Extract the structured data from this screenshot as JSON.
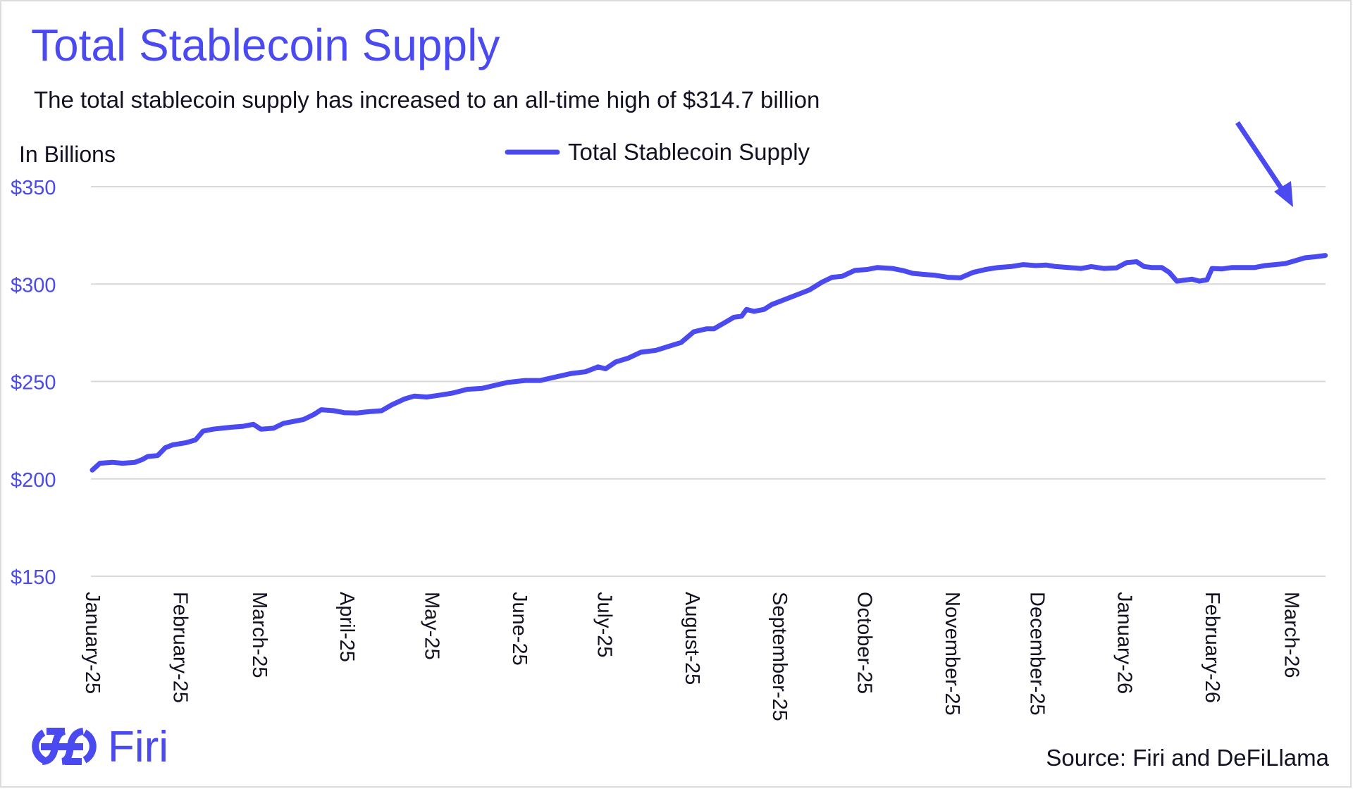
{
  "title": "Total Stablecoin Supply",
  "subtitle": "The total stablecoin supply has increased to an all-time high of $314.7 billion",
  "source": "Source: Firi and DeFiLlama",
  "logo_text": "Firi",
  "colors": {
    "accent": "#4a4af0",
    "text": "#111122",
    "grid": "#d9d9d9"
  },
  "chart_data": {
    "type": "line",
    "title": "Total Stablecoin Supply",
    "ylabel": "In Billions",
    "xlabel": "",
    "ylim": [
      150,
      350
    ],
    "yticks": [
      350,
      300,
      250,
      200,
      150
    ],
    "ytick_labels": [
      "$350",
      "$300",
      "$250",
      "$200",
      "$150"
    ],
    "grid": true,
    "legend": {
      "position": "top-center",
      "entries": [
        "Total Stablecoin Supply"
      ]
    },
    "xticks": [
      {
        "day": 0,
        "label": "January-25"
      },
      {
        "day": 31,
        "label": "February-25"
      },
      {
        "day": 59,
        "label": "March-25"
      },
      {
        "day": 90,
        "label": "April-25"
      },
      {
        "day": 120,
        "label": "May-25"
      },
      {
        "day": 151,
        "label": "June-25"
      },
      {
        "day": 181,
        "label": "July-25"
      },
      {
        "day": 212,
        "label": "August-25"
      },
      {
        "day": 243,
        "label": "September-25"
      },
      {
        "day": 273,
        "label": "October-25"
      },
      {
        "day": 304,
        "label": "November-25"
      },
      {
        "day": 334,
        "label": "December-25"
      },
      {
        "day": 365,
        "label": "January-26"
      },
      {
        "day": 396,
        "label": "February-26"
      },
      {
        "day": 424,
        "label": "March-26"
      }
    ],
    "xlim_days": [
      0,
      436
    ],
    "annotation": "arrow pointing to all-time high",
    "series": [
      {
        "name": "Total Stablecoin Supply",
        "points": [
          [
            0,
            204.5
          ],
          [
            3,
            208
          ],
          [
            8,
            208.5
          ],
          [
            12,
            208
          ],
          [
            17,
            208.5
          ],
          [
            20,
            210
          ],
          [
            22,
            211.5
          ],
          [
            26,
            212
          ],
          [
            29,
            216
          ],
          [
            32,
            217.5
          ],
          [
            37,
            218.5
          ],
          [
            41,
            220
          ],
          [
            44,
            224.5
          ],
          [
            48,
            225.5
          ],
          [
            55,
            226.5
          ],
          [
            60,
            227
          ],
          [
            64,
            228
          ],
          [
            67,
            225.5
          ],
          [
            72,
            226
          ],
          [
            76,
            228.5
          ],
          [
            80,
            229.5
          ],
          [
            84,
            230.5
          ],
          [
            88,
            233
          ],
          [
            91,
            235.5
          ],
          [
            96,
            235
          ],
          [
            100,
            234
          ],
          [
            105,
            233.8
          ],
          [
            110,
            234.5
          ],
          [
            115,
            235
          ],
          [
            119,
            238
          ],
          [
            124,
            241
          ],
          [
            128,
            242.5
          ],
          [
            133,
            242
          ],
          [
            138,
            243
          ],
          [
            143,
            244
          ],
          [
            149,
            246
          ],
          [
            155,
            246.5
          ],
          [
            160,
            248
          ],
          [
            165,
            249.5
          ],
          [
            172,
            250.5
          ],
          [
            178,
            250.5
          ],
          [
            183,
            252
          ],
          [
            190,
            254
          ],
          [
            196,
            255
          ],
          [
            201,
            257.5
          ],
          [
            204,
            256.5
          ],
          [
            208,
            260
          ],
          [
            213,
            262
          ],
          [
            218,
            265
          ],
          [
            224,
            266
          ],
          [
            229,
            268
          ],
          [
            234,
            270
          ],
          [
            239,
            275.5
          ],
          [
            244,
            277
          ],
          [
            247,
            277
          ],
          [
            251,
            280
          ],
          [
            255,
            283
          ],
          [
            258,
            283.5
          ],
          [
            260,
            287
          ],
          [
            263,
            286
          ],
          [
            267,
            287
          ],
          [
            270,
            289.5
          ],
          [
            275,
            292
          ],
          [
            280,
            294.5
          ],
          [
            285,
            297
          ],
          [
            290,
            301
          ],
          [
            294,
            303.5
          ],
          [
            298,
            304
          ],
          [
            303,
            307
          ],
          [
            308,
            307.5
          ],
          [
            312,
            308.5
          ],
          [
            318,
            308
          ],
          [
            322,
            307
          ],
          [
            326,
            305.5
          ],
          [
            330,
            305
          ],
          [
            335,
            304.5
          ],
          [
            340,
            303.5
          ],
          [
            345,
            303.2
          ],
          [
            350,
            306
          ],
          [
            355,
            307.5
          ],
          [
            360,
            308.5
          ],
          [
            365,
            309
          ],
          [
            370,
            310
          ],
          [
            375,
            309.5
          ],
          [
            379,
            309.8
          ],
          [
            383,
            309
          ],
          [
            388,
            308.5
          ],
          [
            393,
            308
          ],
          [
            397,
            309
          ],
          [
            402,
            308
          ],
          [
            407,
            308.3
          ],
          [
            411,
            311
          ],
          [
            415,
            311.5
          ],
          [
            418,
            309
          ],
          [
            421,
            308.5
          ],
          [
            425,
            308.5
          ],
          [
            428,
            306
          ],
          [
            431,
            301.5
          ],
          [
            434,
            302
          ],
          [
            437,
            302.5
          ],
          [
            440,
            301.5
          ],
          [
            443,
            302.2
          ],
          [
            445,
            308
          ],
          [
            449,
            307.8
          ],
          [
            453,
            308.5
          ],
          [
            458,
            308.5
          ],
          [
            462,
            308.5
          ],
          [
            466,
            309.5
          ],
          [
            470,
            310
          ],
          [
            474,
            310.5
          ],
          [
            478,
            312
          ],
          [
            482,
            313.5
          ],
          [
            486,
            314
          ],
          [
            490,
            314.7
          ]
        ]
      }
    ]
  }
}
